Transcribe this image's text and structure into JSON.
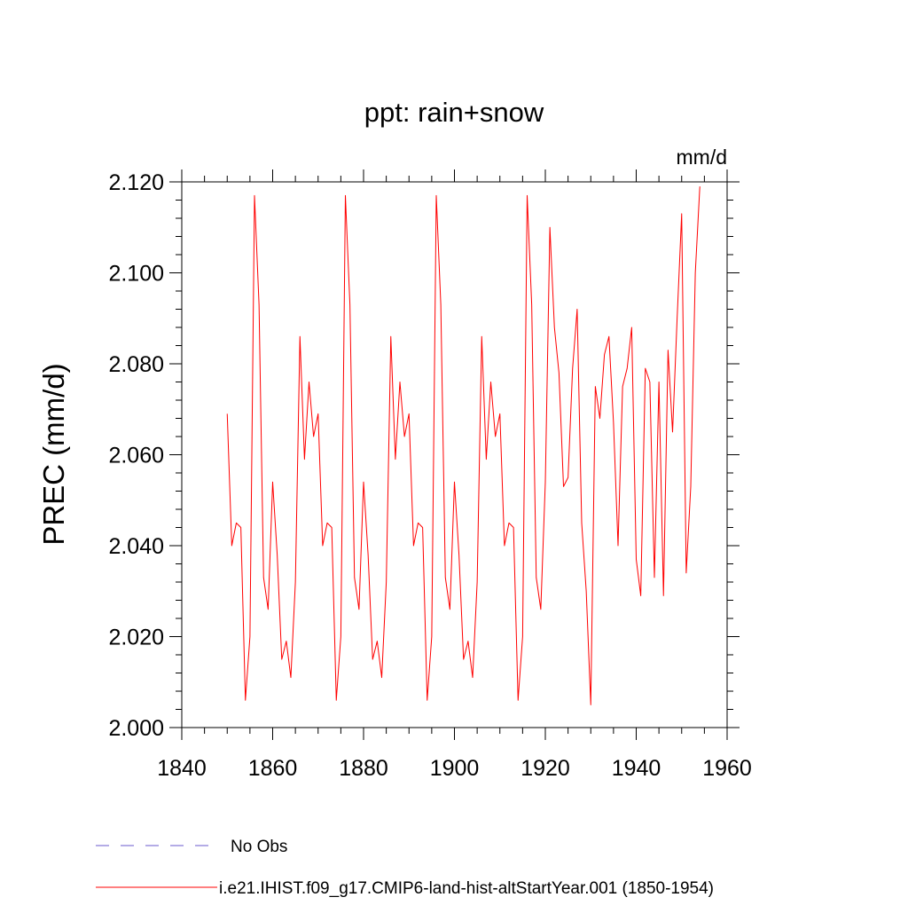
{
  "chart_data": {
    "type": "line",
    "title": "ppt: rain+snow",
    "units_label": "mm/d",
    "ylabel": "PREC  (mm/d)",
    "xlabel": "",
    "xlim": [
      1840,
      1960
    ],
    "ylim": [
      2.0,
      2.12
    ],
    "x_ticks": [
      1840,
      1860,
      1880,
      1900,
      1920,
      1940,
      1960
    ],
    "x_tick_labels": [
      "1840",
      "1860",
      "1880",
      "1900",
      "1920",
      "1940",
      "1960"
    ],
    "y_ticks": [
      2.0,
      2.02,
      2.04,
      2.06,
      2.08,
      2.1,
      2.12
    ],
    "y_tick_labels": [
      "2.000",
      "2.020",
      "2.040",
      "2.060",
      "2.080",
      "2.100",
      "2.120"
    ],
    "grid": false,
    "legend_position": "bottom-left",
    "series": [
      {
        "name": "No Obs",
        "color": "#6a5acd",
        "style": "dashed",
        "x": [],
        "y": []
      },
      {
        "name": "i.e21.IHIST.f09_g17.CMIP6-land-hist-altStartYear.001 (1850-1954)",
        "color": "#ff0000",
        "style": "solid",
        "x": [
          1850,
          1851,
          1852,
          1853,
          1854,
          1855,
          1856,
          1857,
          1858,
          1859,
          1860,
          1861,
          1862,
          1863,
          1864,
          1865,
          1866,
          1867,
          1868,
          1869,
          1870,
          1871,
          1872,
          1873,
          1874,
          1875,
          1876,
          1877,
          1878,
          1879,
          1880,
          1881,
          1882,
          1883,
          1884,
          1885,
          1886,
          1887,
          1888,
          1889,
          1890,
          1891,
          1892,
          1893,
          1894,
          1895,
          1896,
          1897,
          1898,
          1899,
          1900,
          1901,
          1902,
          1903,
          1904,
          1905,
          1906,
          1907,
          1908,
          1909,
          1910,
          1911,
          1912,
          1913,
          1914,
          1915,
          1916,
          1917,
          1918,
          1919,
          1920,
          1921,
          1922,
          1923,
          1924,
          1925,
          1926,
          1927,
          1928,
          1929,
          1930,
          1931,
          1932,
          1933,
          1934,
          1935,
          1936,
          1937,
          1938,
          1939,
          1940,
          1941,
          1942,
          1943,
          1944,
          1945,
          1946,
          1947,
          1948,
          1949,
          1950,
          1951,
          1952,
          1953,
          1954
        ],
        "y": [
          2.069,
          2.04,
          2.045,
          2.044,
          2.006,
          2.02,
          2.117,
          2.093,
          2.033,
          2.026,
          2.054,
          2.038,
          2.015,
          2.019,
          2.011,
          2.032,
          2.086,
          2.059,
          2.076,
          2.064,
          2.069,
          2.04,
          2.045,
          2.044,
          2.006,
          2.02,
          2.117,
          2.093,
          2.033,
          2.026,
          2.054,
          2.038,
          2.015,
          2.019,
          2.011,
          2.032,
          2.086,
          2.059,
          2.076,
          2.064,
          2.069,
          2.04,
          2.045,
          2.044,
          2.006,
          2.02,
          2.117,
          2.093,
          2.033,
          2.026,
          2.054,
          2.038,
          2.015,
          2.019,
          2.011,
          2.032,
          2.086,
          2.059,
          2.076,
          2.064,
          2.069,
          2.04,
          2.045,
          2.044,
          2.006,
          2.02,
          2.117,
          2.093,
          2.033,
          2.026,
          2.054,
          2.11,
          2.088,
          2.078,
          2.053,
          2.055,
          2.079,
          2.092,
          2.045,
          2.03,
          2.005,
          2.075,
          2.068,
          2.082,
          2.086,
          2.067,
          2.04,
          2.075,
          2.079,
          2.088,
          2.037,
          2.029,
          2.079,
          2.076,
          2.033,
          2.076,
          2.029,
          2.083,
          2.065,
          2.09,
          2.113,
          2.034,
          2.053,
          2.1,
          2.119
        ]
      }
    ]
  }
}
